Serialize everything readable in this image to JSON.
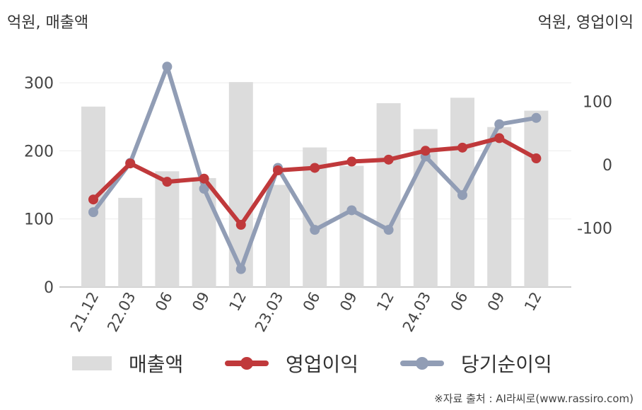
{
  "header": {
    "left_unit": "억원, 매출액",
    "right_unit": "억원, 영업이익"
  },
  "legend": {
    "revenue": "매출액",
    "operating_profit": "영업이익",
    "net_income": "당기순이익"
  },
  "source": "※자료 출처 : AI라씨로(www.rassiro.com)",
  "colors": {
    "revenue": "#dcdcdc",
    "operating_profit": "#c0393b",
    "net_income": "#919db5"
  },
  "chart_data": {
    "type": "bar",
    "categories": [
      "21.12",
      "22.03",
      "06",
      "09",
      "12",
      "23.03",
      "06",
      "09",
      "12",
      "24.03",
      "06",
      "09",
      "12"
    ],
    "series": [
      {
        "name": "매출액",
        "type": "bar",
        "axis": "left",
        "values": [
          265,
          131,
          170,
          160,
          301,
          150,
          205,
          178,
          270,
          232,
          278,
          235,
          259
        ]
      },
      {
        "name": "영업이익",
        "type": "line",
        "axis": "right",
        "values": [
          -55,
          2,
          -27,
          -22,
          -95,
          -9,
          -5,
          5,
          8,
          22,
          27,
          42,
          10
        ]
      },
      {
        "name": "당기순이익",
        "type": "line",
        "axis": "right",
        "values": [
          -75,
          3,
          155,
          -38,
          -165,
          -5,
          -103,
          -72,
          -103,
          13,
          -48,
          64,
          74
        ]
      }
    ],
    "left_axis": {
      "label": "억원, 매출액",
      "ticks": [
        0,
        100,
        200,
        300
      ]
    },
    "right_axis": {
      "label": "억원, 영업이익",
      "ticks": [
        100,
        0,
        -100
      ]
    },
    "grid": true,
    "legend_position": "bottom"
  }
}
